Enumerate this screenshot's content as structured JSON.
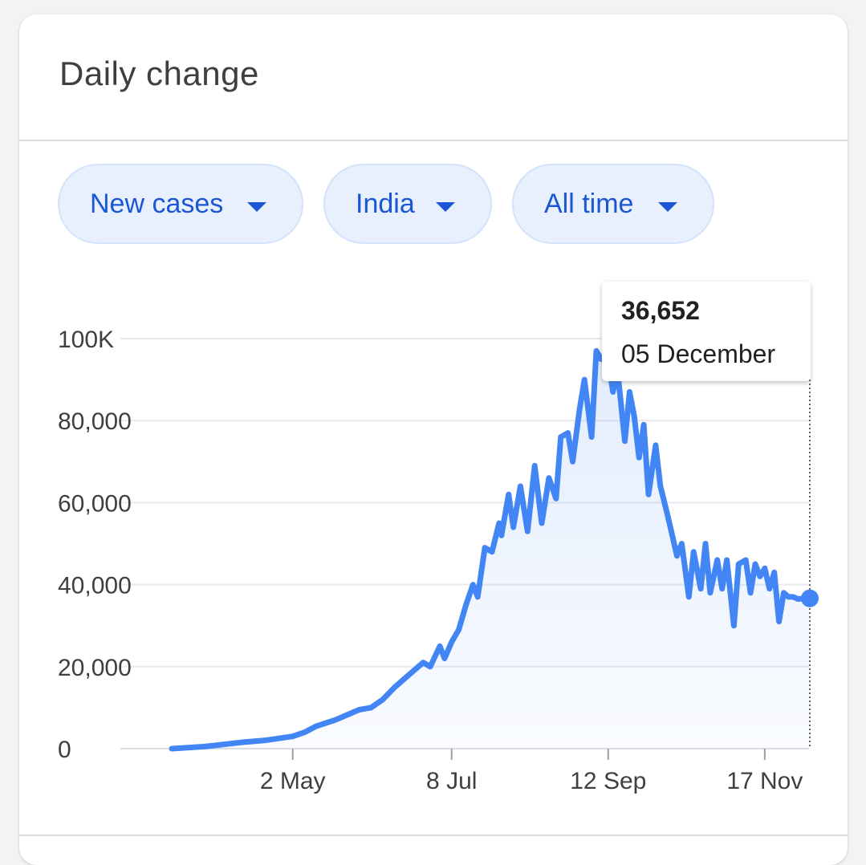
{
  "card": {
    "title": "Daily change"
  },
  "filters": {
    "metric": "New cases",
    "region": "India",
    "range": "All time"
  },
  "tooltip": {
    "value": "36,652",
    "date": "05 December"
  },
  "colors": {
    "line": "#4285f4",
    "chip_text": "#1a56d6",
    "chip_bg": "#e8f0fe"
  },
  "chart_data": {
    "type": "area",
    "title": "",
    "xlabel": "",
    "ylabel": "",
    "ylim": [
      0,
      100000
    ],
    "y_ticks": [
      0,
      20000,
      40000,
      60000,
      80000,
      100000
    ],
    "y_tick_labels": [
      "0",
      "20,000",
      "40,000",
      "60,000",
      "80,000",
      "100K"
    ],
    "x_tick_labels": [
      "2 May",
      "8 Jul",
      "12 Sep",
      "17 Nov"
    ],
    "x_tick_days": [
      122,
      189,
      255,
      321
    ],
    "xlim_days": [
      71,
      340
    ],
    "grid": true,
    "legend": "none",
    "series": [
      {
        "x": [
          71,
          85,
          100,
          110,
          122,
          127,
          132,
          140,
          150,
          155,
          160,
          165,
          168,
          173,
          177,
          180,
          184,
          186,
          189,
          192,
          195,
          198,
          200,
          203,
          206,
          209,
          210,
          213,
          215,
          218,
          221,
          224,
          227,
          230,
          233,
          235,
          238,
          240,
          243,
          245,
          248,
          250,
          252,
          254,
          255,
          257,
          259,
          262,
          264,
          266,
          268,
          270,
          272,
          275,
          277,
          280,
          282,
          284,
          286,
          289,
          291,
          294,
          296,
          298,
          301,
          303,
          305,
          308,
          310,
          313,
          315,
          317,
          319,
          321,
          323,
          325,
          327,
          329,
          331,
          333,
          335,
          337,
          339,
          340
        ],
        "y": [
          0,
          500,
          1500,
          2000,
          3000,
          4000,
          5500,
          7000,
          9500,
          10000,
          12000,
          15000,
          16500,
          19000,
          21000,
          20000,
          25000,
          22000,
          26000,
          29000,
          35000,
          40000,
          37000,
          49000,
          48000,
          55000,
          52000,
          62000,
          54000,
          64000,
          53000,
          69000,
          55000,
          66000,
          61000,
          76000,
          77000,
          70000,
          83000,
          90000,
          76000,
          97000,
          95000,
          96000,
          95000,
          87000,
          92000,
          75000,
          87000,
          81000,
          71000,
          79000,
          62000,
          74000,
          64000,
          57000,
          52000,
          47000,
          50000,
          37000,
          48000,
          39000,
          50000,
          38000,
          46000,
          39000,
          46000,
          30000,
          45000,
          46000,
          38000,
          45000,
          42000,
          44000,
          39000,
          43000,
          31000,
          38000,
          37000,
          37000,
          36500,
          36600,
          36652,
          36652
        ]
      }
    ],
    "highlight": {
      "label": "05 December",
      "value": 36652
    }
  }
}
